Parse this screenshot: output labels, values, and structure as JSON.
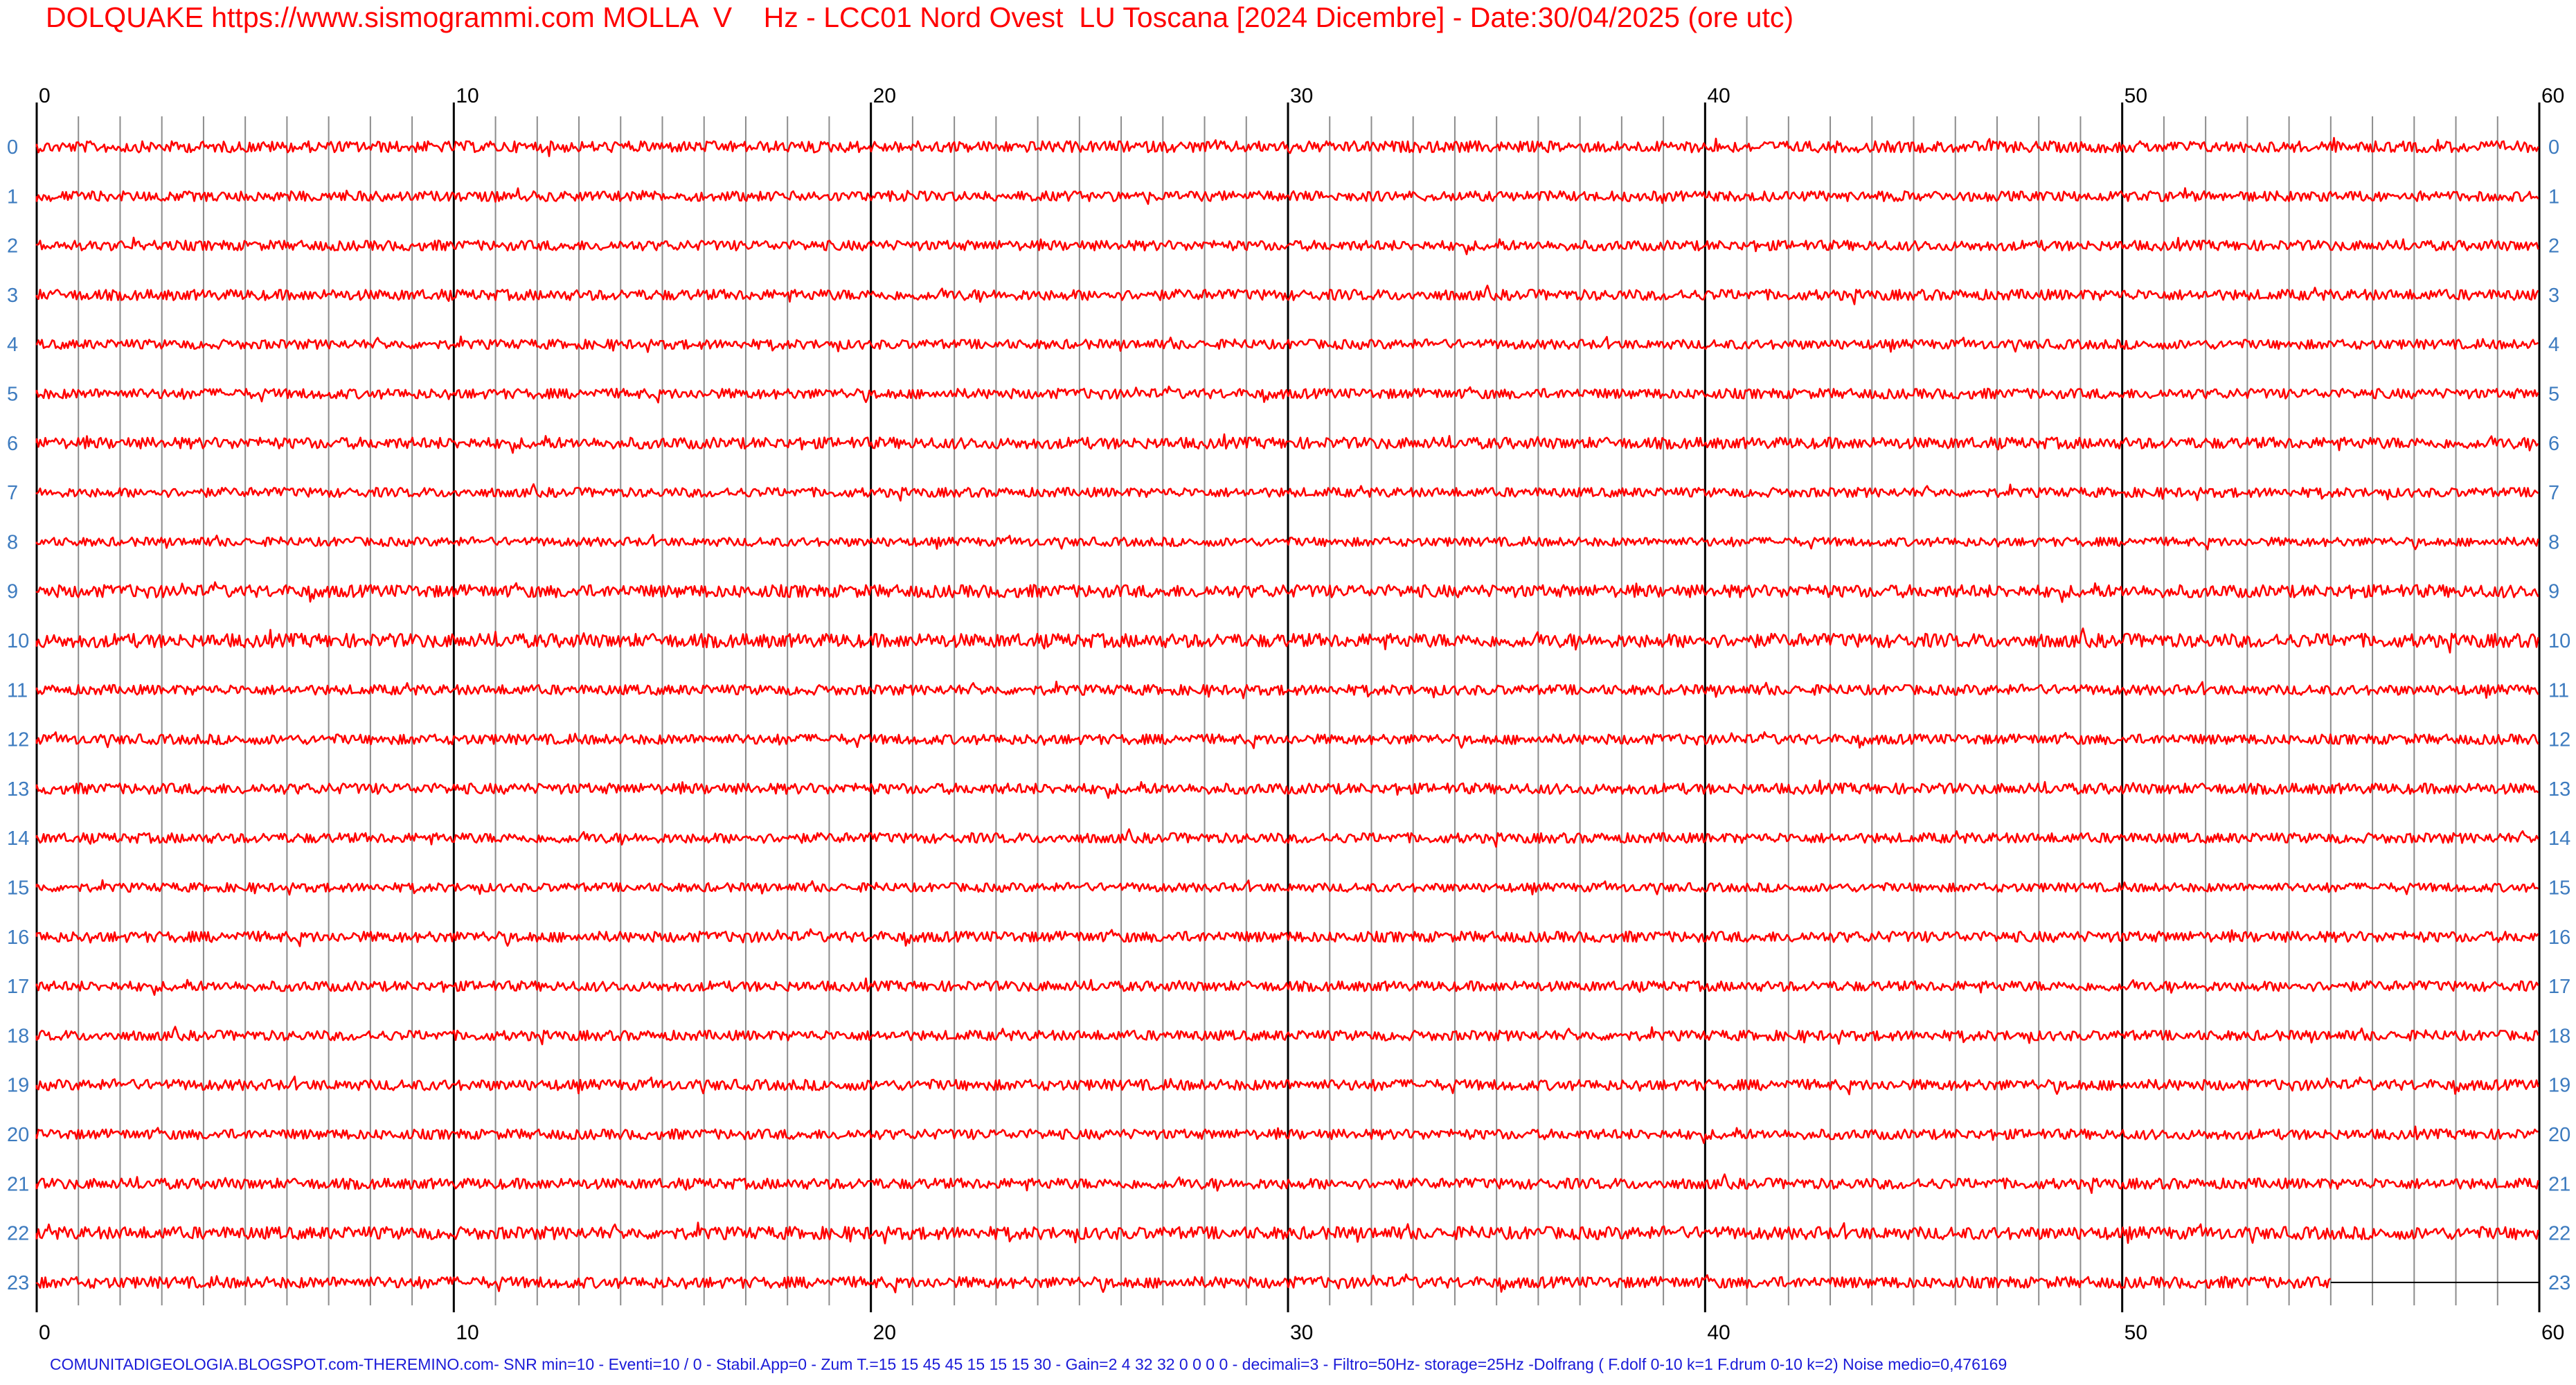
{
  "header": {
    "title": "DOLQUAKE https://www.sismogrammi.com MOLLA  V    Hz - LCC01 Nord Ovest  LU Toscana [2024 Dicembre] - Date:30/04/2025 (ore utc)"
  },
  "footer": {
    "text": "COMUNITADIGEOLOGIA.BLOGSPOT.com-THEREMINO.com- SNR min=10 - Eventi=10 / 0 - Stabil.App=0 - Zum T.=15 15 45 45 15 15 15 30 - Gain=2 4 32 32 0 0 0 0 - decimali=3 - Filtro=50Hz- storage=25Hz -Dolfrang ( F.dolf 0-10 k=1 F.drum 0-10 k=2) Noise medio=0,476169"
  },
  "colors": {
    "trace": "#ff0000",
    "row_label": "#3d7bbf",
    "minute_grid": "#8c8c8c",
    "major_grid": "#000000",
    "baseline": "#000000",
    "footer_text": "#1a1ad8",
    "title_text": "#ff0000"
  },
  "chart_data": {
    "type": "line",
    "title": "DOLQUAKE https://www.sismogrammi.com MOLLA  V    Hz - LCC01 Nord Ovest  LU Toscana [2024 Dicembre] - Date:30/04/2025 (ore utc)",
    "x_ticks": [
      "0",
      "10",
      "20",
      "30",
      "40",
      "50",
      "60"
    ],
    "xlim": [
      0,
      60
    ],
    "minute_gridlines": true,
    "hours": [
      "0",
      "1",
      "2",
      "3",
      "4",
      "5",
      "6",
      "7",
      "8",
      "9",
      "10",
      "11",
      "12",
      "13",
      "14",
      "15",
      "16",
      "17",
      "18",
      "19",
      "20",
      "21",
      "22",
      "23"
    ],
    "trace_end_minute": [
      60,
      60,
      60,
      60,
      60,
      60,
      60,
      60,
      60,
      60,
      60,
      60,
      60,
      60,
      60,
      60,
      60,
      60,
      60,
      60,
      60,
      60,
      60,
      55
    ],
    "noise_level": [
      0.9,
      0.8,
      0.8,
      0.85,
      0.75,
      0.8,
      0.9,
      0.75,
      0.7,
      1.0,
      1.1,
      0.8,
      0.8,
      0.85,
      0.8,
      0.7,
      0.85,
      0.8,
      0.8,
      0.85,
      0.8,
      0.85,
      1.0,
      0.9
    ]
  }
}
